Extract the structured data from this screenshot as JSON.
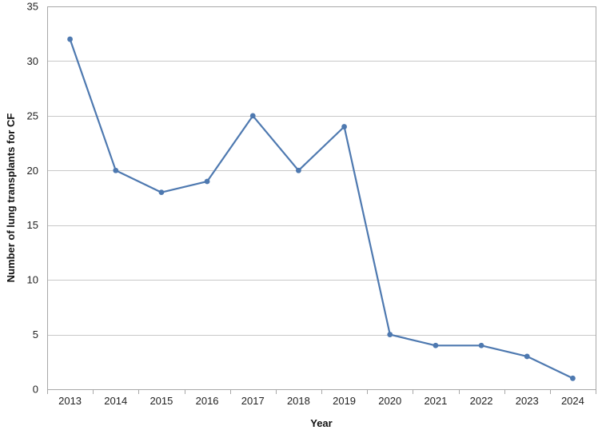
{
  "chart_data": {
    "type": "line",
    "title": "",
    "xlabel": "Year",
    "ylabel": "Number of lung transplants for CF",
    "categories": [
      "2013",
      "2014",
      "2015",
      "2016",
      "2017",
      "2018",
      "2019",
      "2020",
      "2021",
      "2022",
      "2023",
      "2024"
    ],
    "series": [
      {
        "values": [
          32,
          20,
          18,
          19,
          25,
          20,
          24,
          5,
          4,
          4,
          3,
          1
        ]
      }
    ],
    "ylim": [
      0,
      35
    ],
    "yticks": [
      0,
      5,
      10,
      15,
      20,
      25,
      30,
      35
    ],
    "grid": "horizontal",
    "legend": "none",
    "colors": {
      "series": "#4e79b0",
      "grid": "#c8c8c8",
      "frame": "#a8a8a8"
    }
  }
}
